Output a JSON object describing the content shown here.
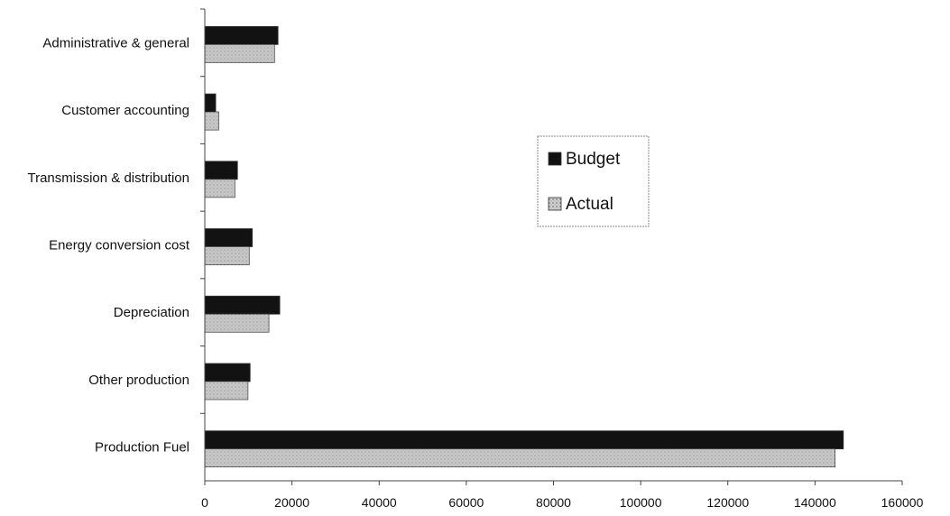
{
  "chart_data": {
    "type": "bar",
    "orientation": "horizontal",
    "categories": [
      "Production Fuel",
      "Other production",
      "Depreciation",
      "Energy conversion cost",
      "Transmission & distribution",
      "Customer accounting",
      "Administrative & general"
    ],
    "series": [
      {
        "name": "Budget",
        "values": [
          146500,
          10400,
          17200,
          10900,
          7500,
          2500,
          16800
        ]
      },
      {
        "name": "Actual",
        "values": [
          144600,
          9900,
          14700,
          10200,
          6900,
          3200,
          16000
        ]
      }
    ],
    "xlim": [
      0,
      160000
    ],
    "xticks": [
      "0",
      "20000",
      "40000",
      "60000",
      "80000",
      "100000",
      "120000",
      "140000",
      "160000"
    ],
    "xlabel": "",
    "ylabel": "",
    "title": "",
    "legend": {
      "position": "right",
      "entries": [
        "Budget",
        "Actual"
      ]
    },
    "grid": false,
    "colors": {
      "Budget": "#121212",
      "Actual": "#bdbdbd"
    }
  }
}
